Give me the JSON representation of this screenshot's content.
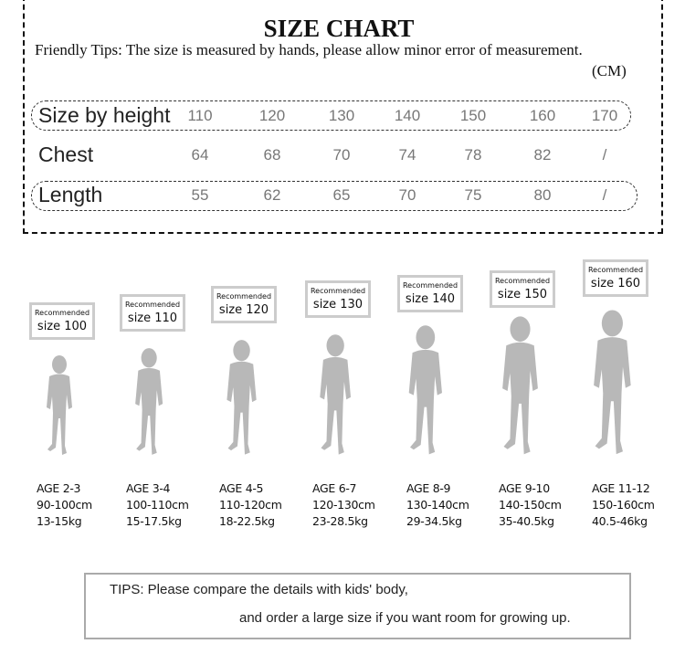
{
  "header": {
    "title": "SIZE CHART",
    "tips": "Friendly Tips: The size is measured by hands, please allow minor error of measurement.",
    "unit": "(CM)"
  },
  "table": {
    "rows": [
      {
        "label": "Size by height",
        "values": [
          "110",
          "120",
          "130",
          "140",
          "150",
          "160",
          "170"
        ]
      },
      {
        "label": "Chest",
        "values": [
          "64",
          "68",
          "70",
          "74",
          "78",
          "82",
          "/"
        ]
      },
      {
        "label": "Length",
        "values": [
          "55",
          "62",
          "65",
          "70",
          "75",
          "80",
          "/"
        ]
      }
    ]
  },
  "figures": [
    {
      "recommended": "Recommended",
      "size": "size 100",
      "age": "AGE 2-3",
      "height": "90-100cm",
      "weight": "13-15kg"
    },
    {
      "recommended": "Recommended",
      "size": "size 110",
      "age": "AGE 3-4",
      "height": "100-110cm",
      "weight": "15-17.5kg"
    },
    {
      "recommended": "Recommended",
      "size": "size 120",
      "age": "AGE 4-5",
      "height": "110-120cm",
      "weight": "18-22.5kg"
    },
    {
      "recommended": "Recommended",
      "size": "size 130",
      "age": "AGE 6-7",
      "height": "120-130cm",
      "weight": "23-28.5kg"
    },
    {
      "recommended": "Recommended",
      "size": "size 140",
      "age": "AGE 8-9",
      "height": "130-140cm",
      "weight": "29-34.5kg"
    },
    {
      "recommended": "Recommended",
      "size": "size 150",
      "age": "AGE 9-10",
      "height": "140-150cm",
      "weight": "35-40.5kg"
    },
    {
      "recommended": "Recommended",
      "size": "size 160",
      "age": "AGE 11-12",
      "height": "150-160cm",
      "weight": "40.5-46kg"
    }
  ],
  "footer": {
    "line1": "TIPS: Please compare the details with kids' body,",
    "line2": "and order a large size if you want room for growing up."
  },
  "colors": {
    "silhouette": "#b8b8b8",
    "box_border": "#cccccc"
  }
}
